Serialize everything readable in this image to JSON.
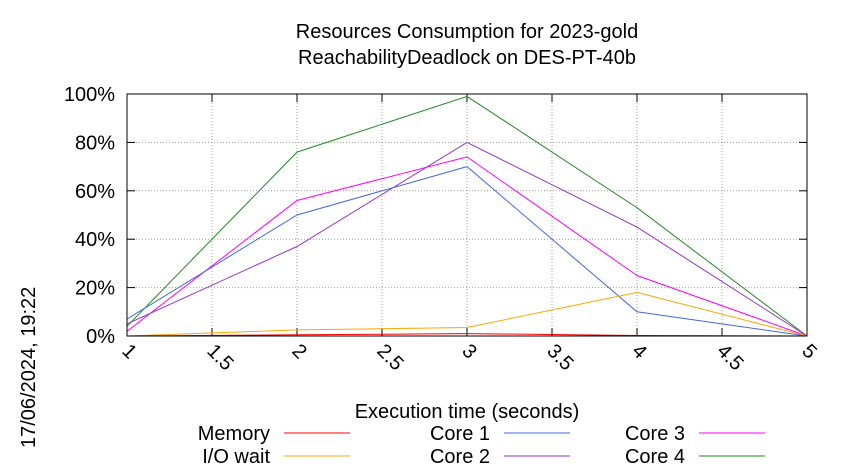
{
  "chart_data": {
    "type": "line",
    "title": "Resources Consumption for 2023-gold",
    "subtitle": "ReachabilityDeadlock on DES-PT-40b",
    "xlabel": "Execution time (seconds)",
    "ylabel": "",
    "xlim": [
      1,
      5
    ],
    "ylim": [
      0,
      100
    ],
    "x_ticks": [
      "1",
      "1.5",
      "2",
      "2.5",
      "3",
      "3.5",
      "4",
      "4.5",
      "5"
    ],
    "y_ticks": [
      "0%",
      "20%",
      "40%",
      "60%",
      "80%",
      "100%"
    ],
    "grid": true,
    "legend_position": "bottom",
    "x": [
      1,
      2,
      3,
      4,
      5
    ],
    "series": [
      {
        "name": "Memory",
        "color": "#ff0000",
        "values": [
          0,
          0.5,
          1,
          0.2,
          0
        ]
      },
      {
        "name": "I/O wait",
        "color": "#ffa500",
        "values": [
          0,
          2.5,
          3.5,
          18,
          0
        ]
      },
      {
        "name": "Core 1",
        "color": "#4169e1",
        "values": [
          7,
          50,
          70,
          10,
          0
        ]
      },
      {
        "name": "Core 2",
        "color": "#9932cc",
        "values": [
          5,
          37,
          80,
          45,
          0
        ]
      },
      {
        "name": "Core 3",
        "color": "#ff00ff",
        "values": [
          2,
          56,
          74,
          25,
          0
        ]
      },
      {
        "name": "Core 4",
        "color": "#228b22",
        "values": [
          4,
          76,
          99,
          53,
          0
        ]
      }
    ]
  },
  "timestamp": "17/06/2024, 19:22"
}
